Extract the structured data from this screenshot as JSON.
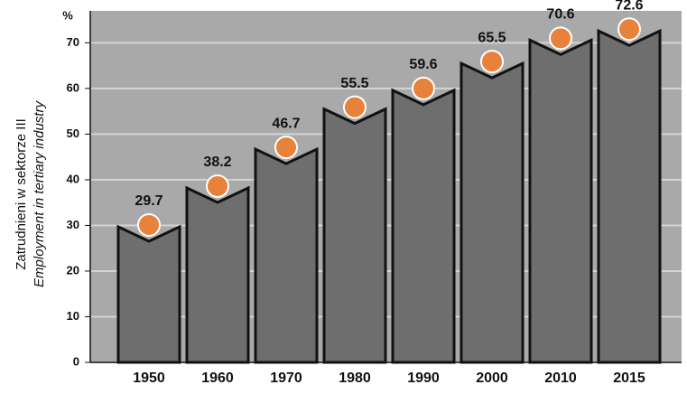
{
  "chart_data": {
    "type": "bar",
    "y_label_unit": "%",
    "y_title": "Zatrudnieni w sektorze III",
    "y_title_en": "Employment in tertiary industry",
    "categories": [
      "1950",
      "1960",
      "1970",
      "1980",
      "1990",
      "2000",
      "2010",
      "2015"
    ],
    "values": [
      29.7,
      38.2,
      46.7,
      55.5,
      59.6,
      65.5,
      70.6,
      72.6
    ],
    "color": "#6e6e6e",
    "marker_color": "#e8813a",
    "ylim": [
      0,
      77
    ],
    "yticks": [
      0,
      10,
      20,
      30,
      40,
      50,
      60,
      70
    ],
    "grid": true
  }
}
